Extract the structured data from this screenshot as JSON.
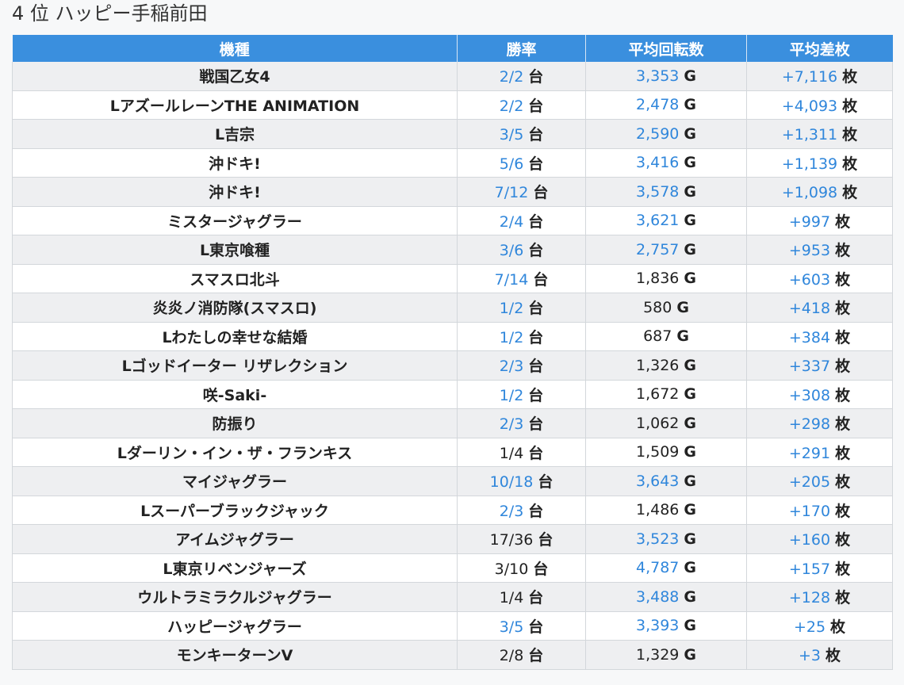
{
  "page": {
    "title": "4 位 ハッピー手稲前田"
  },
  "colors": {
    "header_bg": "#3a8fde",
    "highlight": "#2f86db"
  },
  "table": {
    "headers": [
      "機種",
      "勝率",
      "平均回転数",
      "平均差枚"
    ],
    "units": {
      "rate": "台",
      "spins": "G",
      "diff": "枚"
    },
    "rows": [
      {
        "name": "戦国乙女4",
        "rate": "2/2",
        "rate_hl": true,
        "spins": "3,353",
        "spins_hl": true,
        "diff": "+7,116",
        "diff_hl": true
      },
      {
        "name": "LアズールレーンTHE ANIMATION",
        "rate": "2/2",
        "rate_hl": true,
        "spins": "2,478",
        "spins_hl": true,
        "diff": "+4,093",
        "diff_hl": true
      },
      {
        "name": "L吉宗",
        "rate": "3/5",
        "rate_hl": true,
        "spins": "2,590",
        "spins_hl": true,
        "diff": "+1,311",
        "diff_hl": true
      },
      {
        "name": "沖ドキ!",
        "rate": "5/6",
        "rate_hl": true,
        "spins": "3,416",
        "spins_hl": true,
        "diff": "+1,139",
        "diff_hl": true
      },
      {
        "name": "沖ドキ!",
        "rate": "7/12",
        "rate_hl": true,
        "spins": "3,578",
        "spins_hl": true,
        "diff": "+1,098",
        "diff_hl": true
      },
      {
        "name": "ミスタージャグラー",
        "rate": "2/4",
        "rate_hl": true,
        "spins": "3,621",
        "spins_hl": true,
        "diff": "+997",
        "diff_hl": true
      },
      {
        "name": "L東京喰種",
        "rate": "3/6",
        "rate_hl": true,
        "spins": "2,757",
        "spins_hl": true,
        "diff": "+953",
        "diff_hl": true
      },
      {
        "name": "スマスロ北斗",
        "rate": "7/14",
        "rate_hl": true,
        "spins": "1,836",
        "spins_hl": false,
        "diff": "+603",
        "diff_hl": true
      },
      {
        "name": "炎炎ノ消防隊(スマスロ)",
        "rate": "1/2",
        "rate_hl": true,
        "spins": "580",
        "spins_hl": false,
        "diff": "+418",
        "diff_hl": true
      },
      {
        "name": "Lわたしの幸せな結婚",
        "rate": "1/2",
        "rate_hl": true,
        "spins": "687",
        "spins_hl": false,
        "diff": "+384",
        "diff_hl": true
      },
      {
        "name": "Lゴッドイーター リザレクション",
        "rate": "2/3",
        "rate_hl": true,
        "spins": "1,326",
        "spins_hl": false,
        "diff": "+337",
        "diff_hl": true
      },
      {
        "name": "咲-Saki-",
        "rate": "1/2",
        "rate_hl": true,
        "spins": "1,672",
        "spins_hl": false,
        "diff": "+308",
        "diff_hl": true
      },
      {
        "name": "防振り",
        "rate": "2/3",
        "rate_hl": true,
        "spins": "1,062",
        "spins_hl": false,
        "diff": "+298",
        "diff_hl": true
      },
      {
        "name": "Lダーリン・イン・ザ・フランキス",
        "rate": "1/4",
        "rate_hl": false,
        "spins": "1,509",
        "spins_hl": false,
        "diff": "+291",
        "diff_hl": true
      },
      {
        "name": "マイジャグラー",
        "rate": "10/18",
        "rate_hl": true,
        "spins": "3,643",
        "spins_hl": true,
        "diff": "+205",
        "diff_hl": true
      },
      {
        "name": "Lスーパーブラックジャック",
        "rate": "2/3",
        "rate_hl": true,
        "spins": "1,486",
        "spins_hl": false,
        "diff": "+170",
        "diff_hl": true
      },
      {
        "name": "アイムジャグラー",
        "rate": "17/36",
        "rate_hl": false,
        "spins": "3,523",
        "spins_hl": true,
        "diff": "+160",
        "diff_hl": true
      },
      {
        "name": "L東京リベンジャーズ",
        "rate": "3/10",
        "rate_hl": false,
        "spins": "4,787",
        "spins_hl": true,
        "diff": "+157",
        "diff_hl": true
      },
      {
        "name": "ウルトラミラクルジャグラー",
        "rate": "1/4",
        "rate_hl": false,
        "spins": "3,488",
        "spins_hl": true,
        "diff": "+128",
        "diff_hl": true
      },
      {
        "name": "ハッピージャグラー",
        "rate": "3/5",
        "rate_hl": true,
        "spins": "3,393",
        "spins_hl": true,
        "diff": "+25",
        "diff_hl": true
      },
      {
        "name": "モンキーターンV",
        "rate": "2/8",
        "rate_hl": false,
        "spins": "1,329",
        "spins_hl": false,
        "diff": "+3",
        "diff_hl": true
      }
    ]
  }
}
